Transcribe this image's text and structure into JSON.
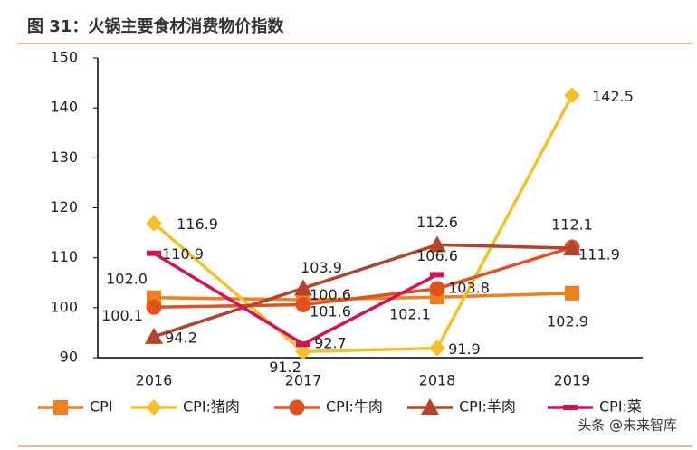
{
  "chart_data": {
    "type": "line",
    "title": "图 31：火锅主要食材消费物价指数",
    "watermark": "头条 @未来智库",
    "categories": [
      "2016",
      "2017",
      "2018",
      "2019"
    ],
    "ylim": [
      90,
      150
    ],
    "yticks": [
      90,
      100,
      110,
      120,
      130,
      140,
      150
    ],
    "legend": "bottom",
    "series": [
      {
        "name": "CPI",
        "color": "#f07f1e",
        "marker": "square",
        "values": [
          102.0,
          101.6,
          102.1,
          102.9
        ],
        "value_labels": [
          "102.0",
          "101.6",
          "102.1",
          "102.9"
        ]
      },
      {
        "name": "CPI:猪肉",
        "color": "#f6c02a",
        "marker": "diamond",
        "values": [
          116.9,
          91.2,
          91.9,
          142.5
        ],
        "value_labels": [
          "116.9",
          "91.2",
          "91.9",
          "142.5"
        ]
      },
      {
        "name": "CPI:牛肉",
        "color": "#e2521e",
        "marker": "circle",
        "values": [
          100.1,
          100.6,
          103.8,
          112.1
        ],
        "value_labels": [
          "100.1",
          "100.6",
          "103.8",
          "112.1"
        ]
      },
      {
        "name": "CPI:羊肉",
        "color": "#b3432c",
        "marker": "triangle",
        "values": [
          94.2,
          103.9,
          112.6,
          111.9
        ],
        "value_labels": [
          "94.2",
          "103.9",
          "112.6",
          "111.9"
        ]
      },
      {
        "name": "CPI:菜",
        "color": "#d6105a",
        "marker": "dash",
        "values": [
          110.9,
          92.7,
          106.6,
          null
        ],
        "value_labels": [
          "110.9",
          "92.7",
          "106.6",
          null
        ]
      }
    ]
  }
}
